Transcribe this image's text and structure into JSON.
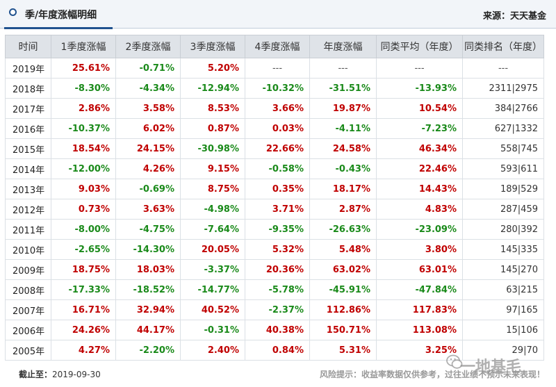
{
  "header": {
    "title": "季/年度涨幅明细",
    "source": "来源：天天基金"
  },
  "columns": [
    "时间",
    "1季度涨幅",
    "2季度涨幅",
    "3季度涨幅",
    "4季度涨幅",
    "年度涨幅",
    "同类平均（年度）",
    "同类排名（年度）"
  ],
  "rows": [
    {
      "year": "2019年",
      "cells": [
        "25.61%",
        "-0.71%",
        "5.20%",
        "---",
        "---",
        "---"
      ],
      "rank": "---"
    },
    {
      "year": "2018年",
      "cells": [
        "-8.30%",
        "-4.34%",
        "-12.94%",
        "-10.32%",
        "-31.51%",
        "-13.93%"
      ],
      "rank": "2311|2975"
    },
    {
      "year": "2017年",
      "cells": [
        "2.86%",
        "3.58%",
        "8.53%",
        "3.66%",
        "19.87%",
        "10.54%"
      ],
      "rank": "384|2766"
    },
    {
      "year": "2016年",
      "cells": [
        "-10.37%",
        "6.02%",
        "0.87%",
        "0.03%",
        "-4.11%",
        "-7.23%"
      ],
      "rank": "627|1332"
    },
    {
      "year": "2015年",
      "cells": [
        "18.54%",
        "24.15%",
        "-30.98%",
        "22.66%",
        "24.58%",
        "46.34%"
      ],
      "rank": "558|745"
    },
    {
      "year": "2014年",
      "cells": [
        "-12.00%",
        "4.26%",
        "9.15%",
        "-0.58%",
        "-0.43%",
        "22.46%"
      ],
      "rank": "593|611"
    },
    {
      "year": "2013年",
      "cells": [
        "9.03%",
        "-0.69%",
        "8.75%",
        "0.35%",
        "18.17%",
        "14.43%"
      ],
      "rank": "189|529"
    },
    {
      "year": "2012年",
      "cells": [
        "0.73%",
        "3.63%",
        "-4.98%",
        "3.71%",
        "2.87%",
        "4.83%"
      ],
      "rank": "287|459"
    },
    {
      "year": "2011年",
      "cells": [
        "-8.00%",
        "-4.75%",
        "-7.64%",
        "-9.35%",
        "-26.63%",
        "-23.09%"
      ],
      "rank": "280|392"
    },
    {
      "year": "2010年",
      "cells": [
        "-2.65%",
        "-14.30%",
        "20.05%",
        "5.32%",
        "5.48%",
        "3.80%"
      ],
      "rank": "145|335"
    },
    {
      "year": "2009年",
      "cells": [
        "18.75%",
        "18.03%",
        "-3.37%",
        "20.36%",
        "63.02%",
        "63.01%"
      ],
      "rank": "145|270"
    },
    {
      "year": "2008年",
      "cells": [
        "-17.33%",
        "-18.52%",
        "-14.77%",
        "-5.78%",
        "-45.91%",
        "-47.84%"
      ],
      "rank": "63|215"
    },
    {
      "year": "2007年",
      "cells": [
        "16.71%",
        "32.94%",
        "40.52%",
        "-2.37%",
        "112.86%",
        "117.83%"
      ],
      "rank": "97|165"
    },
    {
      "year": "2006年",
      "cells": [
        "24.26%",
        "44.17%",
        "-0.31%",
        "40.38%",
        "150.71%",
        "113.08%"
      ],
      "rank": "15|106"
    },
    {
      "year": "2005年",
      "cells": [
        "4.27%",
        "-2.20%",
        "2.40%",
        "0.84%",
        "5.31%",
        "3.25%"
      ],
      "rank": "29|70"
    }
  ],
  "footer": {
    "date_label": "截止至：",
    "date_value": "2019-09-30",
    "risk_note": "风险提示：收益率数据仅供参考，过往业绩不预示未来表现！"
  },
  "watermark": {
    "text": "一地基毛",
    "icon": "wechat-logo-icon"
  },
  "colors": {
    "positive": "#c00000",
    "negative": "#1a8a1a",
    "accent": "#20528f",
    "header_bg": "#dfe3e8"
  }
}
